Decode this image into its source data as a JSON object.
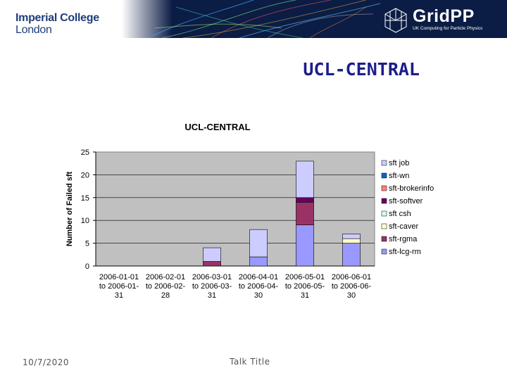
{
  "header": {
    "logo_line1": "Imperial College",
    "logo_line2": "London",
    "gridpp_word": "GridPP",
    "gridpp_tagline": "UK Computing for Particle Physics",
    "banner_color": "#0b1c45"
  },
  "slide": {
    "title": "UCL-CENTRAL",
    "title_color": "#1c1e8a"
  },
  "footer": {
    "date": "10/7/2020",
    "title": "Talk Title"
  },
  "chart_data": {
    "type": "bar",
    "stacked": true,
    "title": "UCL-CENTRAL",
    "xlabel": "",
    "ylabel": "Number of Failed sft",
    "ylim": [
      0,
      25
    ],
    "yticks": [
      0,
      5,
      10,
      15,
      20,
      25
    ],
    "grid": true,
    "legend_position": "right",
    "plot_background": "#c0c0c0",
    "categories": [
      [
        "2006-01-01",
        "to 2006-01-",
        "31"
      ],
      [
        "2006-02-01",
        "to 2006-02-",
        "28"
      ],
      [
        "2006-03-01",
        "to 2006-03-",
        "31"
      ],
      [
        "2006-04-01",
        "to 2006-04-",
        "30"
      ],
      [
        "2006-05-01",
        "to 2006-05-",
        "31"
      ],
      [
        "2006-06-01",
        "to 2006-06-",
        "30"
      ]
    ],
    "series": [
      {
        "name": "sft-lcg-rm",
        "color": "#9999ff",
        "values": [
          0,
          0,
          0,
          2,
          9,
          5
        ]
      },
      {
        "name": "sft-rgma",
        "color": "#993366",
        "values": [
          0,
          0,
          1,
          0,
          5,
          0
        ]
      },
      {
        "name": "sft-caver",
        "color": "#ffffcc",
        "values": [
          0,
          0,
          0,
          0,
          0,
          1
        ]
      },
      {
        "name": "sft csh",
        "color": "#ccffff",
        "values": [
          0,
          0,
          0,
          0,
          0,
          0
        ]
      },
      {
        "name": "sft-softver",
        "color": "#660066",
        "values": [
          0,
          0,
          0,
          0,
          1,
          0
        ]
      },
      {
        "name": "sft-brokerinfo",
        "color": "#ff8080",
        "values": [
          0,
          0,
          0,
          0,
          0,
          0
        ]
      },
      {
        "name": "sft-wn",
        "color": "#0066cc",
        "values": [
          0,
          0,
          0,
          0,
          0,
          0
        ]
      },
      {
        "name": "sft job",
        "color": "#ccccff",
        "values": [
          0,
          0,
          3,
          6,
          8,
          1
        ]
      }
    ]
  }
}
